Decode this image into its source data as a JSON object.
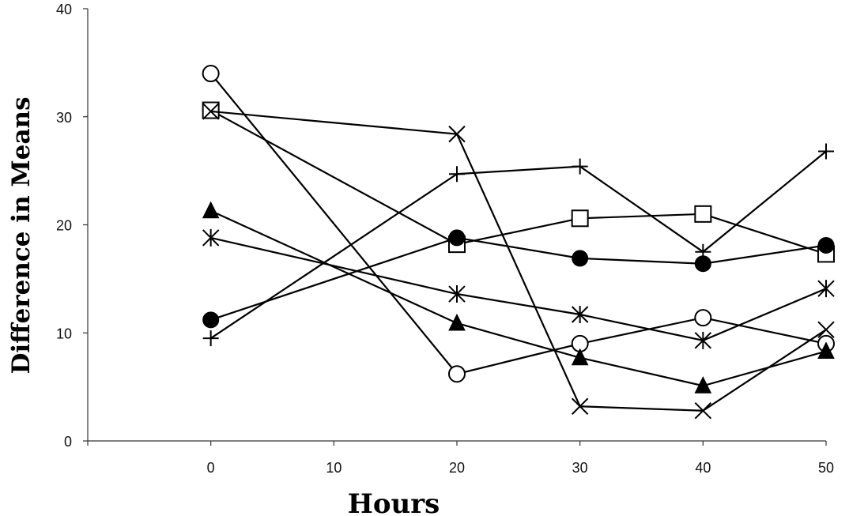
{
  "chart_data": {
    "type": "line",
    "title": "",
    "xlabel": "Hours",
    "ylabel": "Difference in Means",
    "xlim": [
      -10,
      50
    ],
    "ylim": [
      0,
      40
    ],
    "x_ticks": [
      0,
      10,
      20,
      30,
      40,
      50
    ],
    "y_ticks": [
      0,
      10,
      20,
      30,
      40
    ],
    "grid": false,
    "x": [
      0,
      20,
      30,
      40,
      50
    ],
    "series": [
      {
        "marker": "open-circle",
        "values": [
          34.0,
          6.2,
          9.0,
          11.4,
          9.0
        ]
      },
      {
        "marker": "open-square",
        "values": [
          30.6,
          18.2,
          20.6,
          21.0,
          17.3
        ]
      },
      {
        "marker": "x-cross",
        "values": [
          30.5,
          28.4,
          3.2,
          2.8,
          10.3
        ]
      },
      {
        "marker": "plus",
        "values": [
          9.5,
          24.7,
          25.4,
          17.5,
          26.8
        ]
      },
      {
        "marker": "filled-circle",
        "values": [
          11.2,
          18.8,
          16.9,
          16.4,
          18.1
        ]
      },
      {
        "marker": "filled-triangle",
        "values": [
          21.3,
          10.9,
          7.7,
          5.1,
          8.3
        ]
      },
      {
        "marker": "asterisk",
        "values": [
          18.8,
          13.6,
          11.7,
          9.3,
          14.1
        ]
      }
    ]
  }
}
